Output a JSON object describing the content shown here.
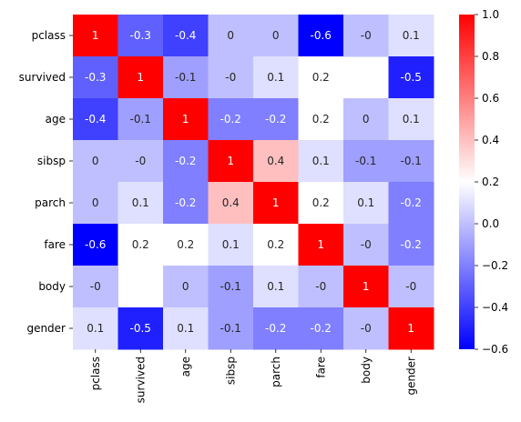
{
  "chart_data": {
    "type": "heatmap",
    "title": "",
    "xlabel": "",
    "ylabel": "",
    "x_categories": [
      "pclass",
      "survived",
      "age",
      "sibsp",
      "parch",
      "fare",
      "body",
      "gender"
    ],
    "y_categories": [
      "pclass",
      "survived",
      "age",
      "sibsp",
      "parch",
      "fare",
      "body",
      "gender"
    ],
    "values": [
      [
        1,
        -0.3,
        -0.4,
        0,
        0,
        -0.6,
        0,
        0.1
      ],
      [
        -0.3,
        1,
        -0.1,
        0,
        0.1,
        0.2,
        null,
        -0.5
      ],
      [
        -0.4,
        -0.1,
        1,
        -0.2,
        -0.2,
        0.2,
        0,
        0.1
      ],
      [
        0,
        0,
        -0.2,
        1,
        0.4,
        0.1,
        -0.1,
        -0.1
      ],
      [
        0,
        0.1,
        -0.2,
        0.4,
        1,
        0.2,
        0.1,
        -0.2
      ],
      [
        -0.6,
        0.2,
        0.2,
        0.1,
        0.2,
        1,
        0,
        -0.2
      ],
      [
        0,
        null,
        0,
        -0.1,
        0.1,
        0,
        1,
        0
      ],
      [
        0.1,
        -0.5,
        0.1,
        -0.1,
        -0.2,
        -0.2,
        0,
        1
      ]
    ],
    "annotations": [
      [
        "1",
        "-0.3",
        "-0.4",
        "0",
        "0",
        "-0.6",
        "-0",
        "0.1"
      ],
      [
        "-0.3",
        "1",
        "-0.1",
        "-0",
        "0.1",
        "0.2",
        "",
        "-0.5"
      ],
      [
        "-0.4",
        "-0.1",
        "1",
        "-0.2",
        "-0.2",
        "0.2",
        "0",
        "0.1"
      ],
      [
        "0",
        "-0",
        "-0.2",
        "1",
        "0.4",
        "0.1",
        "-0.1",
        "-0.1"
      ],
      [
        "0",
        "0.1",
        "-0.2",
        "0.4",
        "1",
        "0.2",
        "0.1",
        "-0.2"
      ],
      [
        "-0.6",
        "0.2",
        "0.2",
        "0.1",
        "0.2",
        "1",
        "-0",
        "-0.2"
      ],
      [
        "-0",
        "",
        "0",
        "-0.1",
        "0.1",
        "-0",
        "1",
        "-0"
      ],
      [
        "0.1",
        "-0.5",
        "0.1",
        "-0.1",
        "-0.2",
        "-0.2",
        "-0",
        "1"
      ]
    ],
    "colormap": "bwr",
    "colormap_colors": [
      "#0000ff",
      "#ffffff",
      "#ff0000"
    ],
    "vmin": -0.6,
    "vmax": 1.0,
    "colorbar": {
      "ticks": [
        1.0,
        0.8,
        0.6,
        0.4,
        0.2,
        0.0,
        -0.2,
        -0.4,
        -0.6
      ],
      "tick_labels": [
        "1.0",
        "0.8",
        "0.6",
        "0.4",
        "0.2",
        "0.0",
        "−0.2",
        "−0.4",
        "−0.6"
      ],
      "placement": "right"
    }
  }
}
